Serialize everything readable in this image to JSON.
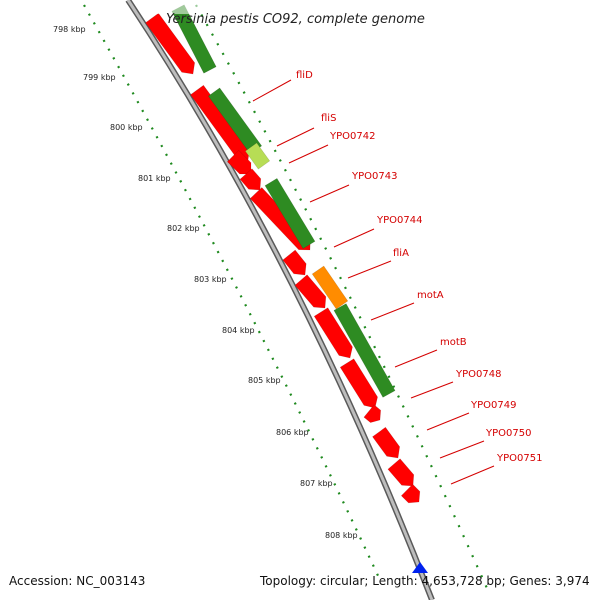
{
  "title": "Yersinia pestis CO92, complete genome",
  "footer": {
    "accession": "Accession: NC_003143",
    "topology": "Topology: circular; Length: 4,653,728 bp; Genes: 3,974"
  },
  "colors": {
    "backbone": "#8c8c8c",
    "gene_forward": "#ff0000",
    "gene_green": "#2e8b22",
    "gene_highlight": "#ff8c00",
    "label": "#d40000",
    "dots": "#1f8a1f",
    "marker": "#0022ee"
  },
  "kbp_ticks": [
    "798 kbp",
    "799 kbp",
    "800 kbp",
    "801 kbp",
    "802 kbp",
    "803 kbp",
    "804 kbp",
    "805 kbp",
    "806 kbp",
    "807 kbp",
    "808 kbp"
  ],
  "genes": [
    "fliD",
    "fliS",
    "YPO0742",
    "YPO0743",
    "YPO0744",
    "fliA",
    "motA",
    "motB",
    "YPO0748",
    "YPO0749",
    "YPO0750",
    "YPO0751"
  ]
}
